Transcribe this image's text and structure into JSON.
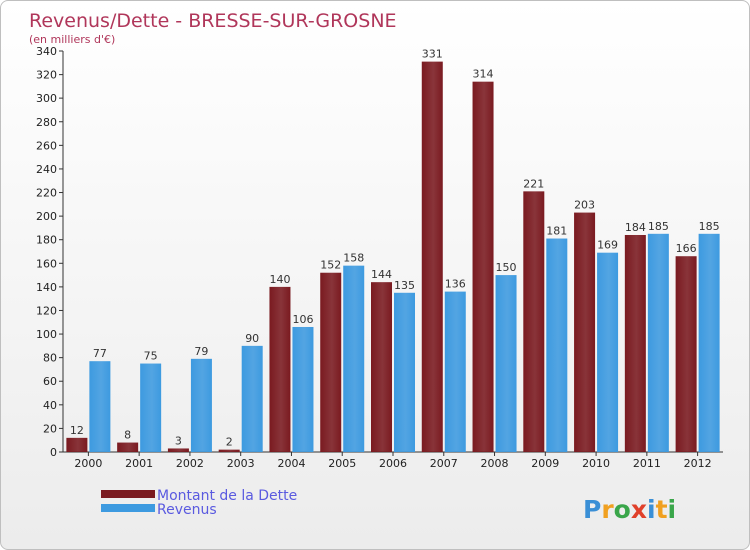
{
  "chart_data": {
    "type": "bar",
    "title": "Revenus/Dette - BRESSE-SUR-GROSNE",
    "subtitle": "(en milliers d'€)",
    "categories": [
      "2000",
      "2001",
      "2002",
      "2003",
      "2004",
      "2005",
      "2006",
      "2007",
      "2008",
      "2009",
      "2010",
      "2011",
      "2012"
    ],
    "series": [
      {
        "name": "Montant de la Dette",
        "values": [
          12,
          8,
          3,
          2,
          140,
          152,
          144,
          331,
          314,
          221,
          203,
          184,
          166
        ],
        "color": "#7a1a20"
      },
      {
        "name": "Revenus",
        "values": [
          77,
          75,
          79,
          90,
          106,
          158,
          135,
          136,
          150,
          181,
          169,
          185,
          185
        ],
        "color": "#3d9ae0"
      }
    ],
    "ylim": [
      0,
      340
    ],
    "yticks": [
      0,
      20,
      40,
      60,
      80,
      100,
      120,
      140,
      160,
      180,
      200,
      220,
      240,
      260,
      280,
      300,
      320,
      340
    ],
    "grid": false,
    "legend": "bottom-left"
  },
  "brand": {
    "letters": [
      "P",
      "r",
      "o",
      "x",
      "i",
      "t",
      "i"
    ],
    "colors": [
      "#3a8fd6",
      "#f0a020",
      "#3aa64a",
      "#e0402a",
      "#3a8fd6",
      "#f0a020",
      "#3aa64a"
    ]
  },
  "colors": {
    "title": "#b0365a",
    "legend_text": "#5a5ae0"
  }
}
